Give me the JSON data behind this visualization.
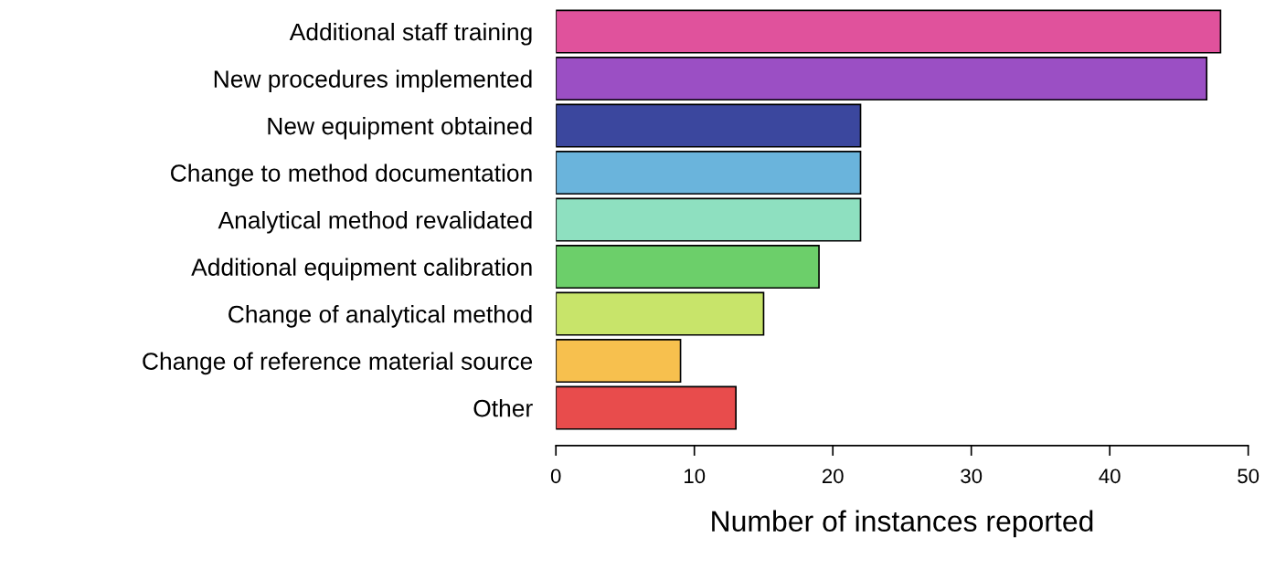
{
  "chart_data": {
    "type": "bar",
    "orientation": "horizontal",
    "xlabel": "Number of instances reported",
    "categories": [
      "Additional staff training",
      "New procedures implemented",
      "New equipment obtained",
      "Change to method documentation",
      "Analytical method revalidated",
      "Additional equipment calibration",
      "Change of analytical method",
      "Change of reference material source",
      "Other"
    ],
    "values": [
      48,
      47,
      22,
      22,
      22,
      19,
      15,
      9,
      13
    ],
    "colors": [
      "#e0529c",
      "#9b4fc4",
      "#3b479e",
      "#6ab4dc",
      "#8ee0c0",
      "#6ccf6a",
      "#c8e46a",
      "#f7c04e",
      "#e84c4c"
    ],
    "xlim": [
      0,
      50
    ],
    "xticks": [
      0,
      10,
      20,
      30,
      40,
      50
    ],
    "grid": false
  }
}
